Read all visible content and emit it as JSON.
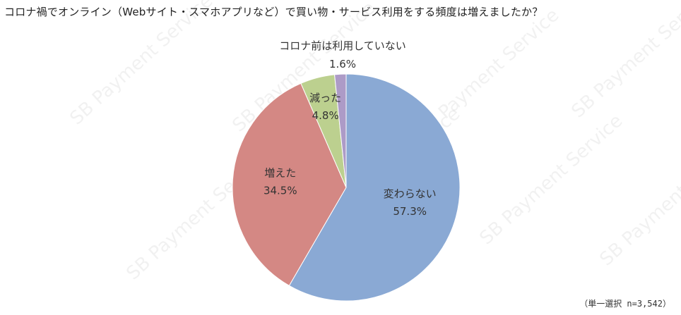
{
  "chart_data": {
    "type": "pie",
    "title": "コロナ禍でオンライン（Webサイト・スマホアプリなど）で買い物・サービス利用をする頻度は増えましたか？",
    "slices": [
      {
        "label": "変わらない",
        "value": 57.3,
        "value_label": "57.3%",
        "color": "#8aa9d4"
      },
      {
        "label": "増えた",
        "value": 34.5,
        "value_label": "34.5%",
        "color": "#d48884"
      },
      {
        "label": "減った",
        "value": 4.8,
        "value_label": "4.8%",
        "color": "#bcd08f"
      },
      {
        "label": "コロナ前は利用していない",
        "value": 1.6,
        "value_label": "1.6%",
        "color": "#ad9bc7"
      }
    ],
    "start": "12 o'clock",
    "direction": "clockwise",
    "legend": "none",
    "note": "（単一選択 n=3,542）"
  },
  "watermark": "SB Payment Service"
}
